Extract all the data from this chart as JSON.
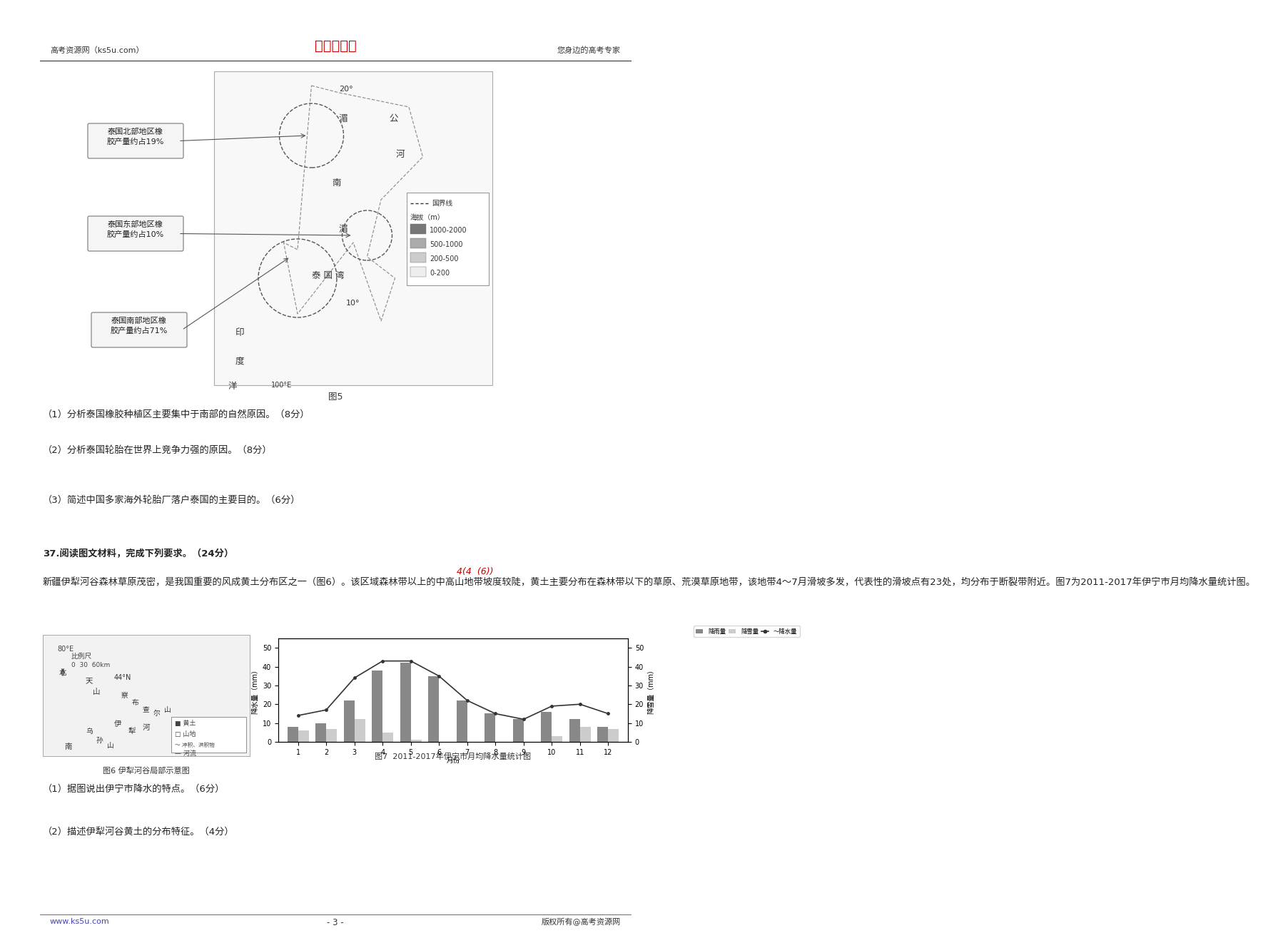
{
  "header_left": "高考资源网（ks5u.com）",
  "header_center": "高考资源网",
  "header_right": "您身边的高考专家",
  "header_center_color": "#cc0000",
  "footer_left": "www.ks5u.com",
  "footer_center": "- 3 -",
  "footer_right": "版权所有@高考资源网",
  "fig5_caption": "图5",
  "fig5_labels": [
    "泰国北部地区橡\n胶产量约占19%",
    "泰国东部地区橡\n胶产量约占10%",
    "泰国南部地区橡\n胶产量约占71%"
  ],
  "legend_items": [
    "国界线",
    "海拔（m）",
    "1000-2000",
    "500-1000",
    "200-500",
    "0-200"
  ],
  "q36_text": "（1）分析泰国橡胶种植区主要集中于南部的自然原因。（8分）",
  "q36_2_text": "（2）分析泰国轮胎在世界上竞争力强的原因。（8分）",
  "q36_3_text": "（3）简述中国多家海外轮胎厂落户泰国的主要目的。（6分）",
  "q37_intro": "37.阅读图文材料，完成下列要求。（24分）",
  "q37_body": "    新疆伊犁河谷森林草原茂密，是我国重要的风成黄土分布区之一（图6）。该区域森林带以上的中高山地带坡度较陡，黄土主要分布在森林带以下的草原、荒漠草原地带，该地带4～7月滑坡多发，代表性的滑坡点有23处，均分布于断裂带附近。图7为2011-2017年伊宁市月均降水量统计图。",
  "fig6_caption": "图6 伊犁河谷局部示意图",
  "fig7_caption": "图7  2011-2017年伊宁市月均降水量统计图",
  "q37_1_text": "（1）据图说出伊宁市降水的特点。（6分）",
  "q37_2_text": "（2）描述伊犁河谷黄土的分布特征。（4分）",
  "bar_months": [
    1,
    2,
    3,
    4,
    5,
    6,
    7,
    8,
    9,
    10,
    11,
    12
  ],
  "bar_rain_values": [
    8,
    10,
    22,
    38,
    42,
    35,
    22,
    15,
    12,
    16,
    12,
    8
  ],
  "bar_snow_values": [
    6,
    7,
    12,
    5,
    1,
    0,
    0,
    0,
    0,
    3,
    8,
    7
  ],
  "line_total_values": [
    14,
    17,
    34,
    43,
    43,
    35,
    22,
    15,
    12,
    19,
    20,
    15
  ],
  "bar_rain_color": "#888888",
  "bar_snow_color": "#cccccc",
  "line_color": "#333333",
  "chart_ylabel_left": "降水量（mm）",
  "chart_ylabel_right": "降雪量（mm）",
  "background_color": "#ffffff",
  "page_bg": "#ffffff",
  "border_color": "#888888",
  "text_color": "#000000",
  "annotation_color": "#cc0000"
}
